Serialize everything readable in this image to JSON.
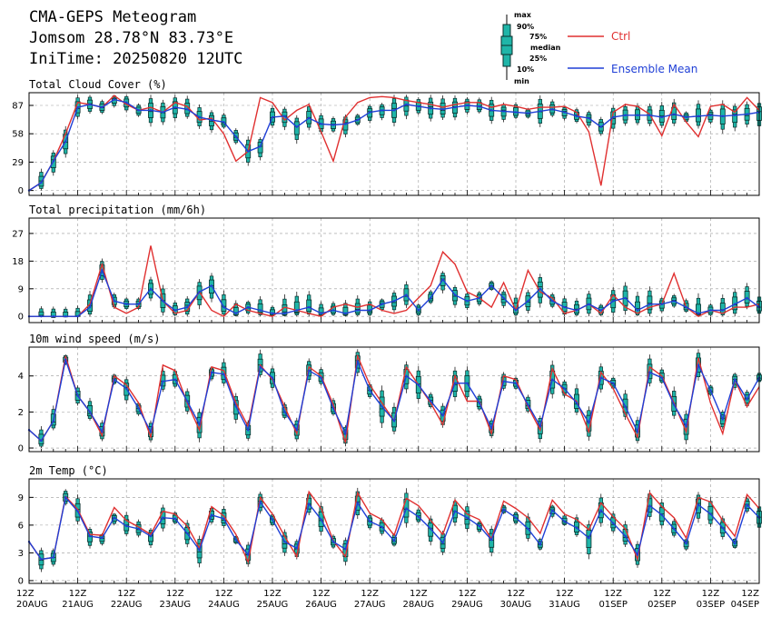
{
  "header": {
    "title": "CMA-GEPS Meteogram",
    "location": "Jomsom 28.78°N 83.73°E",
    "init": "IniTime: 20250820 12UTC"
  },
  "legend": {
    "box_labels": [
      "max",
      "90%",
      "75%",
      "median",
      "25%",
      "10%",
      "min"
    ],
    "ctrl": "Ctrl",
    "mean": "Ensemble Mean"
  },
  "colors": {
    "ctrl": "#e03030",
    "mean": "#1f3fd6",
    "box": "#1fb5a8",
    "box_edge": "#0b2e2b",
    "grid": "#999999"
  },
  "x_axis": {
    "hour_labels": [
      "12Z",
      "12Z",
      "12Z",
      "12Z",
      "12Z",
      "12Z",
      "12Z",
      "12Z",
      "12Z",
      "12Z",
      "12Z",
      "12Z",
      "12Z",
      "12Z",
      "12Z",
      "12Z"
    ],
    "date_labels": [
      "20AUG",
      "21AUG",
      "22AUG",
      "23AUG",
      "24AUG",
      "25AUG",
      "26AUG",
      "27AUG",
      "28AUG",
      "29AUG",
      "30AUG",
      "31AUG",
      "01SEP",
      "02SEP",
      "03SEP",
      "04SEP"
    ]
  },
  "chart_data": [
    {
      "type": "box",
      "title": "Total Cloud Cover (%)",
      "ylim": [
        -5,
        100
      ],
      "yticks": [
        0,
        29,
        58,
        87
      ],
      "x_step_hours": 6,
      "series": [
        {
          "name": "Ctrl",
          "values": [
            0,
            8,
            30,
            58,
            90,
            88,
            85,
            97,
            88,
            82,
            85,
            80,
            90,
            86,
            72,
            74,
            58,
            30,
            40,
            95,
            90,
            72,
            82,
            88,
            60,
            30,
            75,
            90,
            95,
            96,
            95,
            92,
            90,
            88,
            85,
            88,
            90,
            90,
            85,
            88,
            86,
            83,
            85,
            85,
            86,
            80,
            60,
            5,
            80,
            88,
            86,
            78,
            56,
            88,
            70,
            55,
            86,
            88,
            80,
            95,
            82
          ]
        },
        {
          "name": "Ensemble Mean",
          "values": [
            0,
            8,
            30,
            50,
            85,
            88,
            85,
            93,
            90,
            82,
            82,
            80,
            85,
            83,
            75,
            72,
            70,
            55,
            40,
            45,
            75,
            76,
            65,
            74,
            68,
            67,
            68,
            72,
            80,
            82,
            82,
            88,
            86,
            84,
            83,
            85,
            87,
            86,
            82,
            81,
            80,
            79,
            81,
            83,
            80,
            76,
            74,
            65,
            75,
            77,
            77,
            77,
            75,
            78,
            75,
            76,
            77,
            76,
            77,
            78,
            80
          ]
        }
      ]
    },
    {
      "type": "box",
      "title": "Total precipitation (mm/6h)",
      "ylim": [
        -2,
        32
      ],
      "yticks": [
        0,
        9,
        18,
        27
      ],
      "x_step_hours": 6,
      "series": [
        {
          "name": "Ctrl",
          "values": [
            0,
            0,
            0,
            0,
            0,
            4,
            17,
            3,
            1,
            3,
            23,
            5,
            1,
            2,
            8,
            2,
            0,
            4,
            2,
            1,
            0,
            3,
            2,
            1,
            0,
            3,
            4,
            3,
            4,
            2,
            1,
            2,
            6,
            10,
            21,
            17,
            8,
            6,
            3,
            11,
            2,
            15,
            8,
            6,
            1,
            2,
            4,
            1,
            7,
            3,
            1,
            3,
            4,
            14,
            3,
            0,
            2,
            1,
            3,
            3,
            4
          ]
        },
        {
          "name": "Ensemble Mean",
          "values": [
            0,
            0,
            0,
            0,
            0,
            3,
            15,
            5,
            4,
            4,
            9,
            5,
            2,
            3,
            8,
            10,
            3,
            1,
            3,
            2,
            1,
            1,
            2,
            3,
            1,
            2,
            1,
            2,
            2,
            4,
            5,
            7,
            2,
            6,
            12,
            7,
            5,
            6,
            10,
            6,
            2,
            5,
            9,
            5,
            3,
            2,
            4,
            2,
            5,
            6,
            2,
            4,
            4,
            5,
            3,
            1,
            2,
            2,
            4,
            6,
            3
          ]
        }
      ]
    },
    {
      "type": "box",
      "title": "10m wind speed (m/s)",
      "ylim": [
        -0.2,
        5.6
      ],
      "yticks": [
        0,
        2,
        4
      ],
      "x_step_hours": 6,
      "series": [
        {
          "name": "Ctrl",
          "values": [
            1.0,
            0.4,
            1.5,
            5.1,
            2.9,
            2.0,
            0.7,
            4.0,
            3.5,
            2.5,
            0.6,
            4.6,
            4.3,
            2.5,
            1.0,
            4.5,
            4.3,
            2.5,
            1.2,
            4.6,
            3.8,
            2.3,
            0.8,
            4.5,
            4.0,
            2.4,
            0.3,
            5.1,
            3.5,
            2.5,
            1.5,
            4.5,
            3.5,
            2.5,
            1.3,
            4.0,
            2.6,
            2.6,
            0.8,
            4.0,
            3.8,
            2.3,
            1.0,
            4.4,
            3.0,
            2.6,
            0.9,
            4.2,
            3.3,
            1.9,
            0.6,
            4.5,
            4.0,
            2.5,
            0.9,
            5.0,
            2.5,
            0.8,
            3.8,
            2.3,
            3.4
          ]
        },
        {
          "name": "Ensemble Mean",
          "values": [
            1.0,
            0.4,
            1.5,
            4.9,
            2.9,
            2.0,
            0.9,
            3.8,
            3.3,
            2.2,
            0.9,
            3.7,
            3.8,
            2.6,
            1.3,
            4.2,
            4.1,
            2.3,
            1.0,
            4.5,
            3.9,
            2.0,
            1.0,
            4.3,
            3.9,
            2.2,
            0.8,
            4.8,
            3.2,
            2.3,
            1.5,
            4.0,
            3.5,
            2.6,
            1.8,
            3.6,
            3.6,
            2.5,
            1.1,
            3.7,
            3.6,
            2.4,
            1.2,
            3.8,
            3.3,
            2.5,
            1.4,
            3.9,
            3.6,
            2.3,
            0.9,
            4.2,
            3.9,
            2.4,
            1.2,
            4.6,
            3.2,
            1.6,
            3.8,
            2.7,
            3.9
          ]
        }
      ]
    },
    {
      "type": "box",
      "title": "2m Temp (°C)",
      "ylim": [
        -0.3,
        11
      ],
      "yticks": [
        0,
        3,
        6,
        9
      ],
      "x_step_hours": 6,
      "series": [
        {
          "name": "Ctrl",
          "values": [
            4.2,
            2.3,
            2.5,
            9.1,
            7.7,
            5.0,
            4.9,
            7.9,
            6.5,
            5.8,
            5.0,
            7.5,
            7.2,
            5.9,
            3.5,
            8.0,
            7.0,
            5.0,
            2.0,
            9.0,
            7.2,
            4.8,
            2.6,
            9.6,
            7.8,
            4.3,
            2.6,
            9.5,
            7.3,
            6.6,
            4.9,
            8.9,
            8.1,
            6.5,
            5.0,
            8.7,
            7.2,
            6.6,
            4.5,
            8.6,
            7.8,
            6.8,
            5.1,
            8.7,
            7.2,
            6.6,
            5.5,
            8.4,
            6.9,
            5.6,
            2.3,
            9.5,
            8.0,
            6.8,
            4.6,
            9.0,
            8.5,
            6.5,
            4.8,
            9.3,
            7.8
          ]
        },
        {
          "name": "Ensemble Mean",
          "values": [
            4.2,
            2.3,
            2.5,
            9.0,
            7.5,
            4.8,
            4.6,
            6.8,
            5.9,
            5.6,
            4.8,
            6.8,
            6.7,
            5.1,
            3.3,
            7.1,
            6.7,
            4.4,
            2.8,
            8.5,
            6.6,
            4.2,
            3.5,
            8.3,
            6.6,
            4.2,
            3.4,
            8.4,
            6.4,
            5.8,
            4.3,
            7.8,
            6.9,
            5.6,
            4.1,
            7.5,
            6.8,
            5.9,
            4.4,
            7.7,
            6.8,
            5.6,
            3.9,
            7.6,
            6.4,
            5.7,
            4.6,
            7.6,
            6.2,
            4.8,
            2.8,
            8.1,
            7.1,
            5.6,
            4.0,
            8.2,
            7.2,
            5.7,
            4.0,
            8.2,
            6.8
          ]
        }
      ]
    }
  ]
}
